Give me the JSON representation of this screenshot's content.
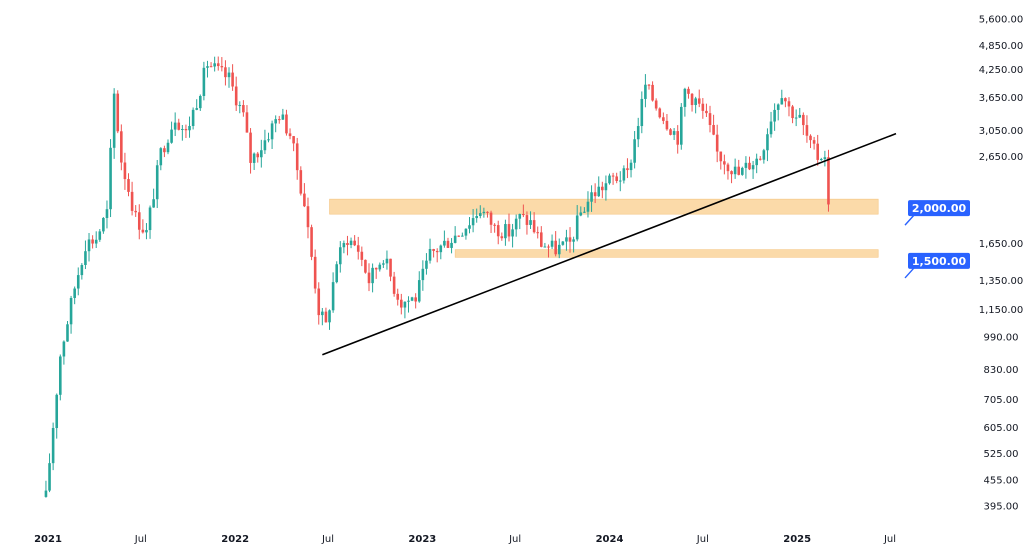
{
  "chart_data": {
    "type": "candlestick",
    "scale": "log",
    "title": "",
    "xlabel": "",
    "ylabel": "",
    "x_range": [
      "2021-01-01",
      "2025-07-01"
    ],
    "y_range": [
      375,
      6000
    ],
    "y_ticks": [
      395,
      455,
      525,
      605,
      705,
      830,
      990,
      1150,
      1350,
      1650,
      2650,
      3050,
      3650,
      4250,
      4850,
      5600
    ],
    "y_tick_labels": [
      "395.00",
      "455.00",
      "525.00",
      "605.00",
      "705.00",
      "830.00",
      "990.00",
      "1,150.00",
      "1,350.00",
      "1,650.00",
      "2,650.00",
      "3,050.00",
      "3,650.00",
      "4,250.00",
      "4,850.00",
      "5,600.00"
    ],
    "x_ticks": [
      {
        "date": "2021-01-01",
        "label": "2021",
        "year": true
      },
      {
        "date": "2021-07-01",
        "label": "Jul",
        "year": false
      },
      {
        "date": "2022-01-01",
        "label": "2022",
        "year": true
      },
      {
        "date": "2022-07-01",
        "label": "Jul",
        "year": false
      },
      {
        "date": "2023-01-01",
        "label": "2023",
        "year": true
      },
      {
        "date": "2023-07-01",
        "label": "Jul",
        "year": false
      },
      {
        "date": "2024-01-01",
        "label": "2024",
        "year": true
      },
      {
        "date": "2024-07-01",
        "label": "Jul",
        "year": false
      },
      {
        "date": "2025-01-01",
        "label": "2025",
        "year": true
      },
      {
        "date": "2025-07-01",
        "label": "Jul",
        "year": false
      }
    ],
    "colors": {
      "up": "#26a69a",
      "down": "#ef5350",
      "zone": "#fbd9a5",
      "zone_border": "#f6c27c",
      "trendline": "#000000",
      "label_bg": "#2962ff"
    },
    "anchors": [
      [
        "2020-12-28",
        415
      ],
      [
        "2021-01-25",
        900
      ],
      [
        "2021-02-22",
        1300
      ],
      [
        "2021-03-15",
        1650
      ],
      [
        "2021-04-05",
        1700
      ],
      [
        "2021-04-26",
        1950
      ],
      [
        "2021-05-10",
        3700
      ],
      [
        "2021-05-24",
        2600
      ],
      [
        "2021-06-21",
        1900
      ],
      [
        "2021-07-12",
        1750
      ],
      [
        "2021-08-09",
        2700
      ],
      [
        "2021-09-06",
        3300
      ],
      [
        "2021-09-27",
        3000
      ],
      [
        "2021-10-18",
        3600
      ],
      [
        "2021-11-08",
        4400
      ],
      [
        "2021-11-29",
        4200
      ],
      [
        "2021-12-20",
        4050
      ],
      [
        "2022-01-17",
        3300
      ],
      [
        "2022-01-31",
        2600
      ],
      [
        "2022-02-21",
        2800
      ],
      [
        "2022-03-28",
        3350
      ],
      [
        "2022-04-18",
        3000
      ],
      [
        "2022-05-16",
        2050
      ],
      [
        "2022-06-13",
        1150
      ],
      [
        "2022-06-27",
        1050
      ],
      [
        "2022-07-18",
        1500
      ],
      [
        "2022-08-08",
        1700
      ],
      [
        "2022-08-29",
        1600
      ],
      [
        "2022-09-19",
        1350
      ],
      [
        "2022-10-17",
        1550
      ],
      [
        "2022-11-07",
        1300
      ],
      [
        "2022-11-21",
        1200
      ],
      [
        "2022-12-19",
        1230
      ],
      [
        "2023-01-16",
        1550
      ],
      [
        "2023-02-13",
        1650
      ],
      [
        "2023-03-13",
        1750
      ],
      [
        "2023-04-10",
        1900
      ],
      [
        "2023-04-24",
        2000
      ],
      [
        "2023-05-22",
        1800
      ],
      [
        "2023-06-19",
        1750
      ],
      [
        "2023-07-10",
        1900
      ],
      [
        "2023-07-31",
        1850
      ],
      [
        "2023-08-21",
        1650
      ],
      [
        "2023-09-18",
        1600
      ],
      [
        "2023-10-16",
        1650
      ],
      [
        "2023-11-06",
        1950
      ],
      [
        "2023-11-27",
        2150
      ],
      [
        "2023-12-18",
        2250
      ],
      [
        "2024-01-08",
        2350
      ],
      [
        "2024-02-05",
        2400
      ],
      [
        "2024-02-26",
        3200
      ],
      [
        "2024-03-11",
        3900
      ],
      [
        "2024-04-01",
        3500
      ],
      [
        "2024-04-22",
        3200
      ],
      [
        "2024-05-13",
        2950
      ],
      [
        "2024-05-27",
        3800
      ],
      [
        "2024-06-17",
        3600
      ],
      [
        "2024-07-08",
        3250
      ],
      [
        "2024-07-29",
        2700
      ],
      [
        "2024-08-19",
        2550
      ],
      [
        "2024-09-09",
        2400
      ],
      [
        "2024-09-30",
        2550
      ],
      [
        "2024-10-21",
        2650
      ],
      [
        "2024-11-11",
        3300
      ],
      [
        "2024-12-02",
        3800
      ],
      [
        "2024-12-16",
        3450
      ],
      [
        "2025-01-06",
        3250
      ],
      [
        "2025-01-27",
        2800
      ],
      [
        "2025-02-10",
        2650
      ],
      [
        "2025-02-24",
        2700
      ],
      [
        "2025-03-03",
        2000
      ]
    ],
    "zones": [
      {
        "name": "zone-2000",
        "from": "2022-07-04",
        "to": "2025-06-08",
        "low": 1935,
        "high": 2100
      },
      {
        "name": "zone-1500",
        "from": "2023-03-06",
        "to": "2025-06-08",
        "low": 1530,
        "high": 1595
      }
    ],
    "trendline": {
      "from": [
        "2022-06-20",
        900
      ],
      "to": [
        "2025-07-01",
        3000
      ]
    },
    "level_labels": [
      {
        "name": "level-2000",
        "value": 2000,
        "text": "2,000.00"
      },
      {
        "name": "level-1500",
        "value": 1500,
        "text": "1,500.00"
      }
    ]
  }
}
